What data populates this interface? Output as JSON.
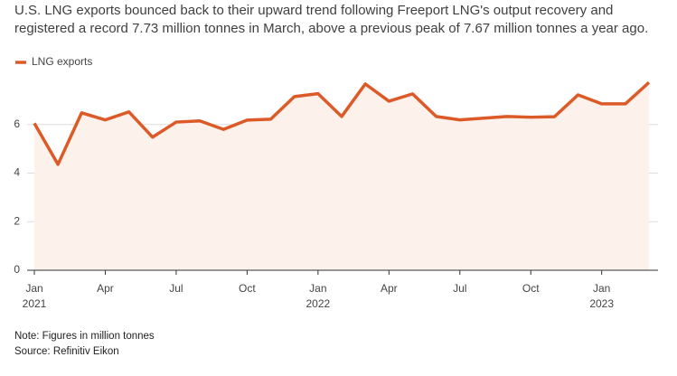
{
  "chart_data": {
    "type": "line",
    "title": "U.S. LNG exports bounced back to their upward trend following Freeport LNG's output recovery and registered a record 7.73 million tonnes in March, above a previous peak of 7.67 million tonnes a year ago.",
    "categories": [
      "Jan",
      null,
      null,
      "Apr",
      null,
      null,
      "Jul",
      null,
      null,
      "Oct",
      null,
      null,
      "Jan",
      null,
      null,
      "Apr",
      null,
      null,
      "Jul",
      null,
      null,
      "Oct",
      null,
      null,
      "Jan",
      null,
      null
    ],
    "x_year_labels": [
      "2021",
      null,
      null,
      null,
      null,
      null,
      null,
      null,
      null,
      null,
      null,
      null,
      "2022",
      null,
      null,
      null,
      null,
      null,
      null,
      null,
      null,
      null,
      null,
      null,
      "2023",
      null,
      null
    ],
    "series": [
      {
        "name": "LNG exports",
        "color": "#dc5a28",
        "fill": "#fdf1eb",
        "values": [
          6.05,
          4.36,
          6.48,
          6.19,
          6.52,
          5.48,
          6.1,
          6.15,
          5.8,
          6.18,
          6.22,
          7.15,
          7.27,
          6.33,
          7.67,
          6.96,
          7.26,
          6.33,
          6.19,
          6.26,
          6.33,
          6.3,
          6.32,
          7.22,
          6.85,
          6.85,
          7.73
        ]
      }
    ],
    "ylim": [
      0,
      8
    ],
    "yticks": [
      0,
      2,
      4,
      6
    ],
    "grid": true,
    "notes": [
      "Note: Figures in million tonnes",
      "Source: Refinitiv Eikon"
    ]
  }
}
